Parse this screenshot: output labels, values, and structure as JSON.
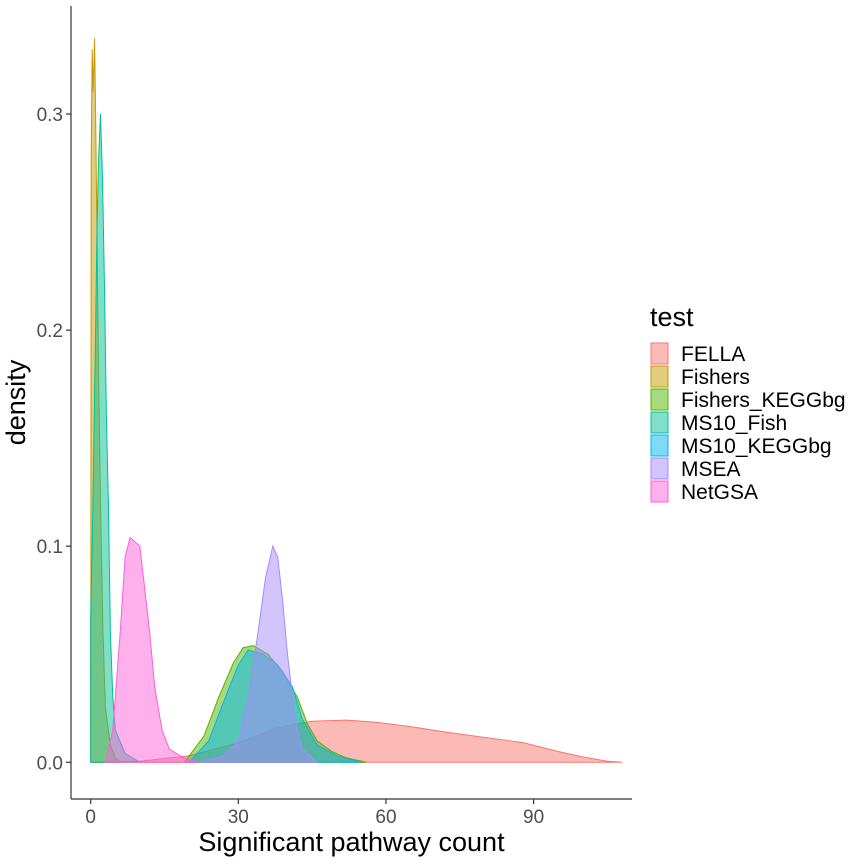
{
  "chart_data": {
    "type": "area",
    "title": "",
    "xlabel": "Significant pathway count",
    "ylabel": "density",
    "xlim": [
      -4,
      110
    ],
    "ylim": [
      -0.017,
      0.35
    ],
    "x_ticks": [
      0,
      30,
      60,
      90
    ],
    "y_ticks": [
      0.0,
      0.1,
      0.2,
      0.3
    ],
    "x_tick_labels": [
      "0",
      "30",
      "60",
      "90"
    ],
    "y_tick_labels": [
      "0.0",
      "0.1",
      "0.2",
      "0.3"
    ],
    "grid": false,
    "legend": {
      "title": "test",
      "position": "right"
    },
    "series": [
      {
        "name": "FELLA",
        "color": "#F8766D",
        "points": [
          [
            0,
            0
          ],
          [
            10,
            0.0005
          ],
          [
            20,
            0.003
          ],
          [
            30,
            0.009
          ],
          [
            38,
            0.016
          ],
          [
            45,
            0.019
          ],
          [
            52,
            0.0195
          ],
          [
            58,
            0.0185
          ],
          [
            65,
            0.0165
          ],
          [
            72,
            0.014
          ],
          [
            80,
            0.0115
          ],
          [
            88,
            0.009
          ],
          [
            95,
            0.005
          ],
          [
            100,
            0.0025
          ],
          [
            105,
            0.0005
          ],
          [
            108,
            0
          ]
        ]
      },
      {
        "name": "Fishers",
        "color": "#C49A00",
        "points": [
          [
            0,
            0
          ],
          [
            0.1,
            0.28
          ],
          [
            0.3,
            0.33
          ],
          [
            0.5,
            0.31
          ],
          [
            0.8,
            0.335
          ],
          [
            1.0,
            0.3
          ],
          [
            1.3,
            0.24
          ],
          [
            1.6,
            0.18
          ],
          [
            2.0,
            0.12
          ],
          [
            2.5,
            0.06
          ],
          [
            3,
            0.025
          ],
          [
            4,
            0.008
          ],
          [
            5,
            0.002
          ],
          [
            6,
            0
          ]
        ]
      },
      {
        "name": "Fishers_KEGGbg",
        "color": "#53B400",
        "points": [
          [
            19,
            0
          ],
          [
            23,
            0.012
          ],
          [
            26,
            0.03
          ],
          [
            29,
            0.046
          ],
          [
            31,
            0.053
          ],
          [
            33,
            0.054
          ],
          [
            36,
            0.05
          ],
          [
            39,
            0.042
          ],
          [
            42,
            0.03
          ],
          [
            44,
            0.018
          ],
          [
            46,
            0.01
          ],
          [
            49,
            0.005
          ],
          [
            52,
            0.002
          ],
          [
            56,
            0
          ]
        ]
      },
      {
        "name": "MS10_Fish",
        "color": "#00C094",
        "points": [
          [
            0,
            0.068
          ],
          [
            0.3,
            0.1
          ],
          [
            0.6,
            0.14
          ],
          [
            1.0,
            0.2
          ],
          [
            1.3,
            0.25
          ],
          [
            1.6,
            0.28
          ],
          [
            2.0,
            0.3
          ],
          [
            2.4,
            0.27
          ],
          [
            2.8,
            0.22
          ],
          [
            3.2,
            0.16
          ],
          [
            3.6,
            0.12
          ],
          [
            4.0,
            0.06
          ],
          [
            4.5,
            0.03
          ],
          [
            5,
            0.015
          ],
          [
            7,
            0.004
          ],
          [
            10,
            0
          ]
        ]
      },
      {
        "name": "MS10_KEGGbg",
        "color": "#00B6EB",
        "points": [
          [
            20,
            0
          ],
          [
            24,
            0.01
          ],
          [
            27,
            0.028
          ],
          [
            30,
            0.045
          ],
          [
            32,
            0.052
          ],
          [
            35,
            0.05
          ],
          [
            38,
            0.045
          ],
          [
            41,
            0.035
          ],
          [
            43,
            0.02
          ],
          [
            46,
            0.008
          ],
          [
            50,
            0.003
          ],
          [
            55,
            0
          ]
        ]
      },
      {
        "name": "MSEA",
        "color": "#A58AFF",
        "points": [
          [
            22,
            0
          ],
          [
            27,
            0.003
          ],
          [
            30,
            0.01
          ],
          [
            32,
            0.03
          ],
          [
            34,
            0.06
          ],
          [
            35.5,
            0.085
          ],
          [
            37,
            0.1
          ],
          [
            38,
            0.095
          ],
          [
            39,
            0.075
          ],
          [
            40,
            0.05
          ],
          [
            41.5,
            0.02
          ],
          [
            43,
            0.006
          ],
          [
            46,
            0
          ]
        ]
      },
      {
        "name": "NetGSA",
        "color": "#FB61D7",
        "points": [
          [
            3,
            0
          ],
          [
            4.5,
            0.015
          ],
          [
            6,
            0.06
          ],
          [
            7,
            0.095
          ],
          [
            8,
            0.104
          ],
          [
            10,
            0.1
          ],
          [
            11,
            0.08
          ],
          [
            12,
            0.06
          ],
          [
            13,
            0.035
          ],
          [
            14.5,
            0.015
          ],
          [
            16,
            0.006
          ],
          [
            19,
            0.002
          ],
          [
            22,
            0
          ]
        ]
      }
    ]
  }
}
